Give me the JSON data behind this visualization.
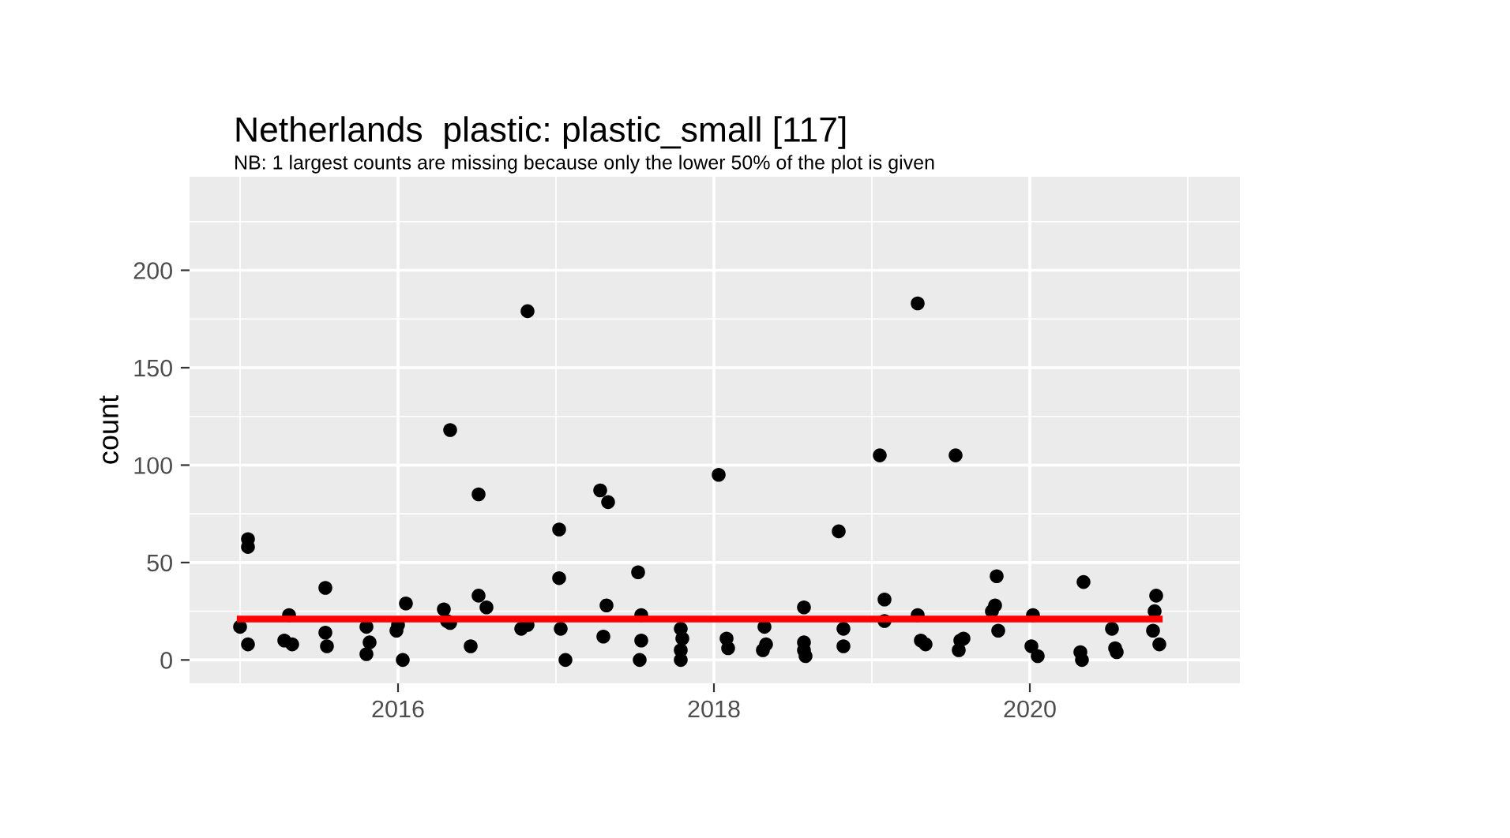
{
  "chart_data": {
    "type": "scatter",
    "title": "Netherlands  plastic: plastic_small [117]",
    "subtitle": "NB: 1 largest counts are missing because only the lower 50% of the plot is given",
    "ylabel": "count",
    "series": [
      {
        "color": "#000000",
        "marker": "circle",
        "x": [
          2015.0,
          2015.05,
          2015.05,
          2015.05,
          2015.31,
          2015.28,
          2015.33,
          2015.54,
          2015.54,
          2015.55,
          2015.8,
          2015.82,
          2015.8,
          2015.99,
          2016.0,
          2016.05,
          2016.03,
          2016.29,
          2016.31,
          2016.33,
          2016.33,
          2016.46,
          2016.51,
          2016.56,
          2016.51,
          2016.78,
          2016.82,
          2016.82,
          2017.02,
          2017.02,
          2017.03,
          2017.06,
          2017.28,
          2017.33,
          2017.32,
          2017.3,
          2017.52,
          2017.54,
          2017.54,
          2017.53,
          2017.79,
          2017.8,
          2017.79,
          2017.79,
          2018.03,
          2018.08,
          2018.09,
          2018.32,
          2018.33,
          2018.31,
          2018.57,
          2018.57,
          2018.57,
          2018.58,
          2018.79,
          2018.82,
          2018.82,
          2019.05,
          2019.08,
          2019.08,
          2019.29,
          2019.29,
          2019.31,
          2019.34,
          2019.53,
          2019.56,
          2019.58,
          2019.55,
          2019.79,
          2019.78,
          2019.76,
          2019.8,
          2020.02,
          2020.01,
          2020.05,
          2020.32,
          2020.33,
          2020.34,
          2020.52,
          2020.54,
          2020.55,
          2020.8,
          2020.79,
          2020.78,
          2020.82
        ],
        "values": [
          17,
          8,
          62,
          58,
          23,
          10,
          8,
          37,
          14,
          7,
          3,
          9,
          17,
          15,
          18,
          29,
          0,
          26,
          20,
          19,
          118,
          7,
          33,
          27,
          85,
          16,
          18,
          179,
          42,
          67,
          16,
          0,
          87,
          81,
          28,
          12,
          45,
          23,
          10,
          0,
          16,
          11,
          5,
          0,
          95,
          11,
          6,
          17,
          8,
          5,
          27,
          9,
          5,
          2,
          66,
          16,
          7,
          105,
          31,
          20,
          183,
          23,
          10,
          8,
          105,
          10,
          11,
          5,
          43,
          28,
          25,
          15,
          23,
          7,
          2,
          4,
          0,
          40,
          16,
          6,
          4,
          33,
          25,
          15,
          8
        ]
      },
      {
        "type": "line",
        "color": "#ff0000",
        "x": [
          2015.0,
          2020.82
        ],
        "values": [
          21,
          21
        ]
      }
    ],
    "xlim": [
      2014.68,
      2021.33
    ],
    "ylim": [
      -12,
      248
    ],
    "xticks": [
      2016,
      2018,
      2020
    ],
    "yticks": [
      0,
      50,
      100,
      150,
      200
    ],
    "grid": true
  }
}
